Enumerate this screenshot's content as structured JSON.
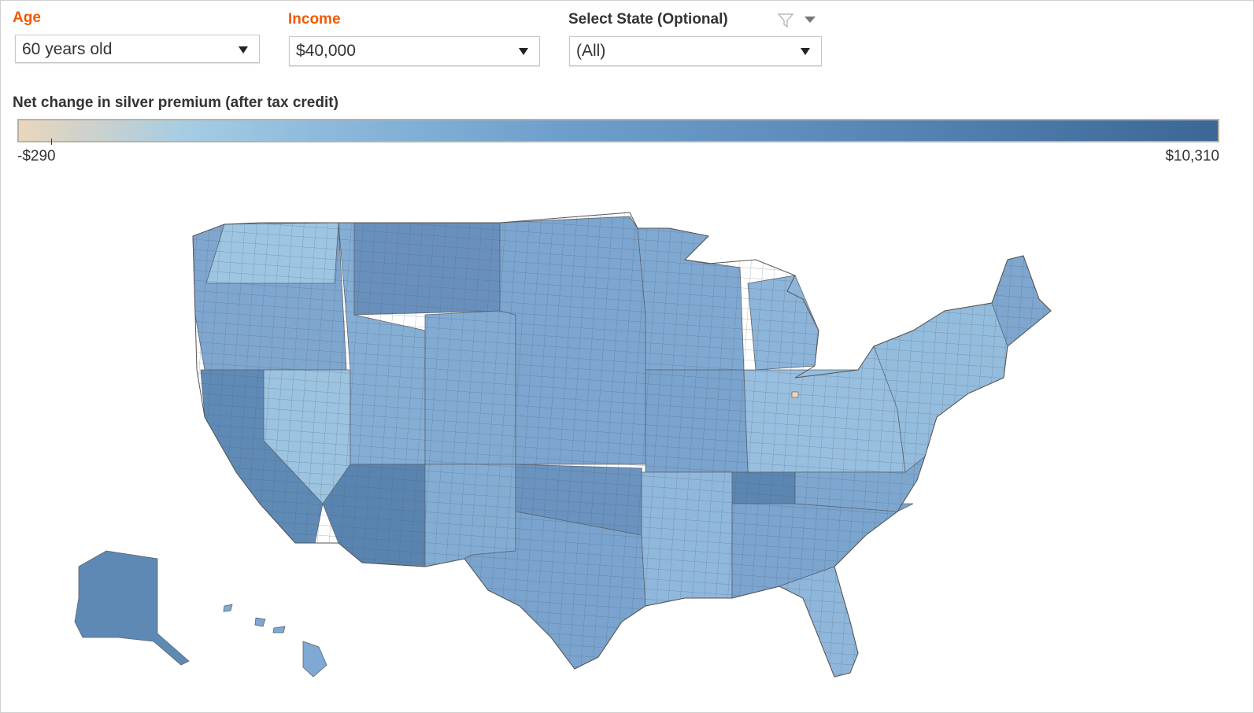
{
  "filters": {
    "age": {
      "label": "Age",
      "value": "60 years old"
    },
    "income": {
      "label": "Income",
      "value": "$40,000"
    },
    "state": {
      "label": "Select State (Optional)",
      "value": "(All)"
    }
  },
  "legend": {
    "title": "Net change in silver premium (after tax credit)",
    "min_label": "-$290",
    "max_label": "$10,310",
    "min": -290,
    "max": 10310,
    "colors": [
      "#ead6bd",
      "#a5cce3",
      "#6e9fcb",
      "#3b6796"
    ]
  },
  "icons": {
    "filter": "filter-icon",
    "menu": "dropdown-menu-icon"
  }
}
